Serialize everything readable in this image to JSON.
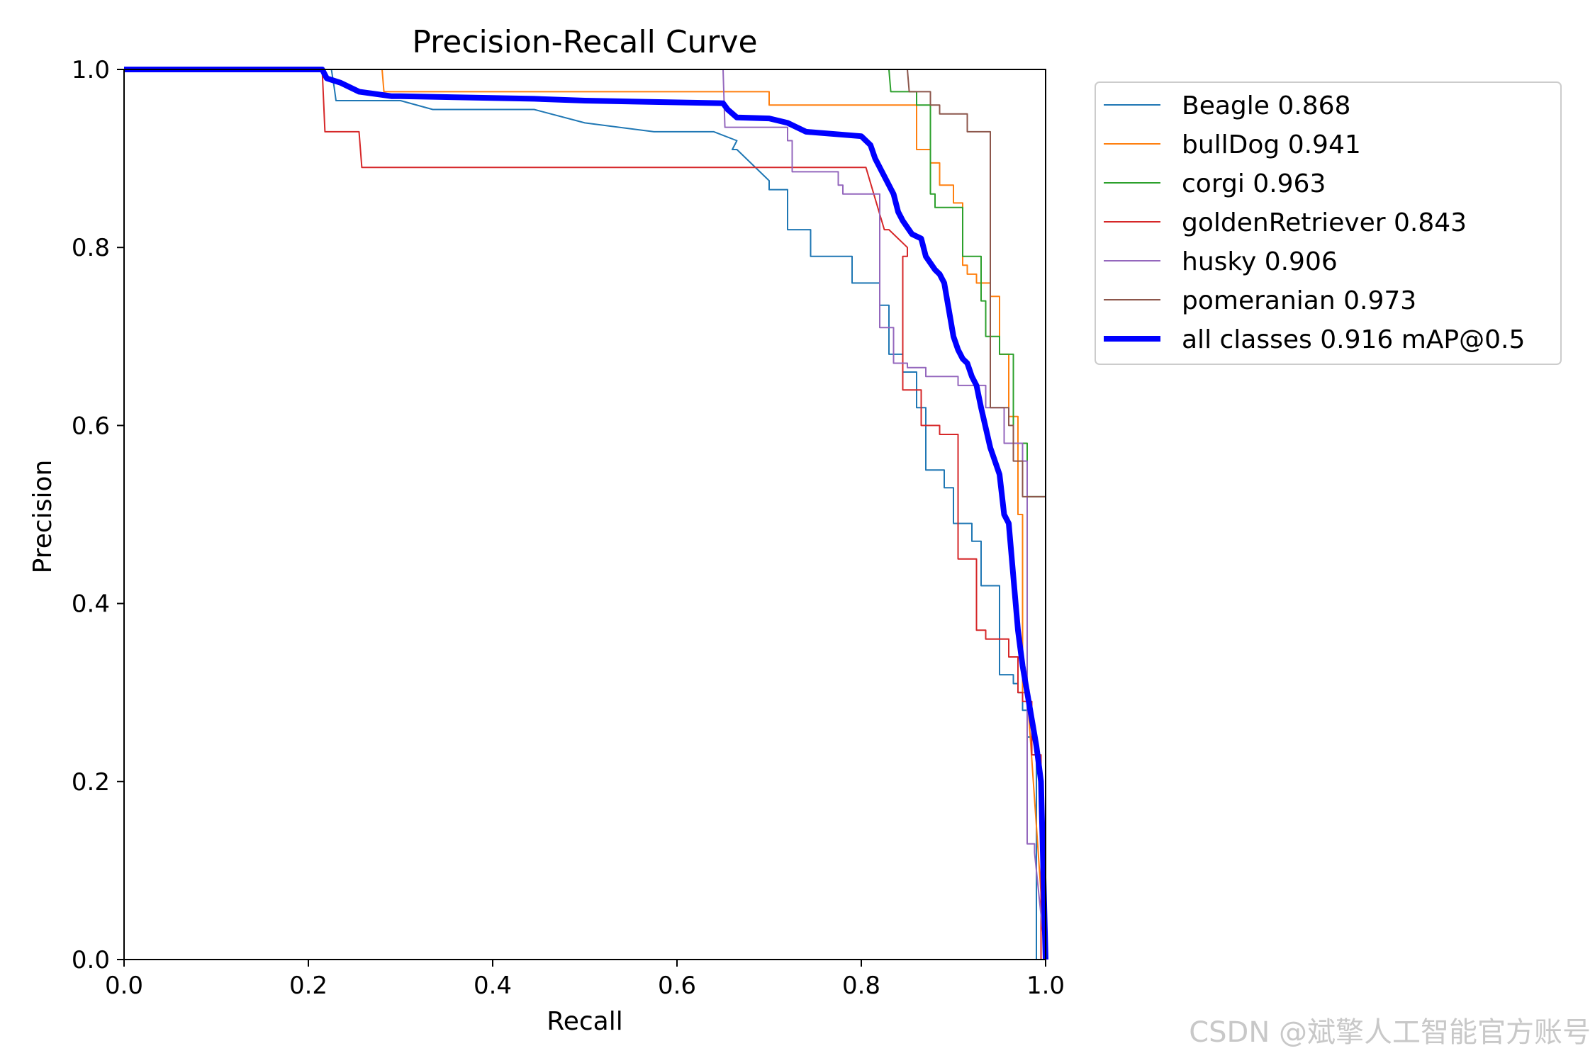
{
  "watermark": "CSDN @斌擎人工智能官方账号",
  "chart_data": {
    "type": "line",
    "title": "Precision-Recall Curve",
    "xlabel": "Recall",
    "ylabel": "Precision",
    "xlim": [
      0,
      1
    ],
    "ylim": [
      0,
      1
    ],
    "xticks": [
      "0.0",
      "0.2",
      "0.4",
      "0.6",
      "0.8",
      "1.0"
    ],
    "yticks": [
      "0.0",
      "0.2",
      "0.4",
      "0.6",
      "0.8",
      "1.0"
    ],
    "legend_position": "outside-right",
    "series": [
      {
        "name": "Beagle",
        "legend": "Beagle 0.868",
        "color": "#1f77b4",
        "bold": false,
        "x": [
          0,
          0.225,
          0.228,
          0.23,
          0.3,
          0.335,
          0.445,
          0.5,
          0.575,
          0.64,
          0.665,
          0.66,
          0.665,
          0.7,
          0.7,
          0.72,
          0.72,
          0.72,
          0.745,
          0.745,
          0.79,
          0.79,
          0.82,
          0.82,
          0.83,
          0.83,
          0.845,
          0.845,
          0.86,
          0.86,
          0.87,
          0.87,
          0.89,
          0.89,
          0.9,
          0.9,
          0.92,
          0.92,
          0.93,
          0.93,
          0.95,
          0.95,
          0.965,
          0.965,
          0.97,
          0.97,
          0.975,
          0.975,
          0.98,
          0.98,
          0.985,
          0.985,
          0.99,
          0.99,
          1.0,
          1.0
        ],
        "y": [
          1.0,
          1.0,
          0.98,
          0.965,
          0.965,
          0.955,
          0.955,
          0.94,
          0.93,
          0.93,
          0.92,
          0.91,
          0.91,
          0.875,
          0.865,
          0.865,
          0.845,
          0.82,
          0.82,
          0.79,
          0.79,
          0.76,
          0.76,
          0.735,
          0.735,
          0.68,
          0.68,
          0.66,
          0.66,
          0.62,
          0.62,
          0.55,
          0.55,
          0.53,
          0.53,
          0.49,
          0.49,
          0.47,
          0.47,
          0.42,
          0.42,
          0.32,
          0.32,
          0.31,
          0.31,
          0.3,
          0.3,
          0.28,
          0.28,
          0.25,
          0.25,
          0.23,
          0.23,
          0.0,
          0.0,
          0.0
        ]
      },
      {
        "name": "bullDog",
        "legend": "bullDog 0.941",
        "color": "#ff7f0e",
        "bold": false,
        "x": [
          0,
          0.28,
          0.282,
          0.7,
          0.7,
          0.85,
          0.86,
          0.86,
          0.875,
          0.875,
          0.885,
          0.885,
          0.9,
          0.9,
          0.91,
          0.91,
          0.915,
          0.915,
          0.925,
          0.925,
          0.94,
          0.94,
          0.95,
          0.95,
          0.96,
          0.96,
          0.97,
          0.97,
          0.975,
          0.975,
          0.98,
          1.0
        ],
        "y": [
          1.0,
          1.0,
          0.975,
          0.975,
          0.96,
          0.96,
          0.96,
          0.91,
          0.91,
          0.895,
          0.895,
          0.87,
          0.87,
          0.85,
          0.85,
          0.78,
          0.78,
          0.77,
          0.77,
          0.76,
          0.76,
          0.745,
          0.745,
          0.68,
          0.68,
          0.61,
          0.61,
          0.5,
          0.5,
          0.3,
          0.3,
          0.0
        ]
      },
      {
        "name": "corgi",
        "legend": "corgi 0.963",
        "color": "#2ca02c",
        "bold": false,
        "x": [
          0,
          0.83,
          0.832,
          0.86,
          0.86,
          0.875,
          0.875,
          0.88,
          0.88,
          0.91,
          0.91,
          0.93,
          0.93,
          0.935,
          0.935,
          0.95,
          0.95,
          0.965,
          0.965,
          0.98,
          0.98,
          1.0,
          1.0
        ],
        "y": [
          1.0,
          1.0,
          0.975,
          0.975,
          0.96,
          0.96,
          0.86,
          0.86,
          0.845,
          0.845,
          0.79,
          0.79,
          0.74,
          0.74,
          0.7,
          0.7,
          0.68,
          0.68,
          0.58,
          0.58,
          0.52,
          0.52,
          0.0
        ]
      },
      {
        "name": "goldenRetriever",
        "legend": "goldenRetriever 0.843",
        "color": "#d62728",
        "bold": false,
        "x": [
          0,
          0.215,
          0.218,
          0.255,
          0.258,
          0.8,
          0.805,
          0.825,
          0.83,
          0.85,
          0.85,
          0.845,
          0.845,
          0.865,
          0.865,
          0.885,
          0.885,
          0.905,
          0.905,
          0.925,
          0.925,
          0.935,
          0.935,
          0.96,
          0.96,
          0.97,
          0.97,
          0.975,
          0.975,
          0.985,
          0.985,
          0.995,
          0.995,
          1.0,
          1.0
        ],
        "y": [
          1.0,
          1.0,
          0.93,
          0.93,
          0.89,
          0.89,
          0.89,
          0.82,
          0.82,
          0.8,
          0.79,
          0.79,
          0.64,
          0.64,
          0.6,
          0.6,
          0.59,
          0.59,
          0.45,
          0.45,
          0.37,
          0.37,
          0.36,
          0.36,
          0.34,
          0.34,
          0.3,
          0.3,
          0.29,
          0.29,
          0.23,
          0.23,
          0.0,
          0.0,
          0.0
        ]
      },
      {
        "name": "husky",
        "legend": "husky 0.906",
        "color": "#9467bd",
        "bold": false,
        "x": [
          0,
          0.65,
          0.652,
          0.72,
          0.72,
          0.725,
          0.725,
          0.775,
          0.775,
          0.78,
          0.78,
          0.82,
          0.82,
          0.835,
          0.835,
          0.85,
          0.85,
          0.87,
          0.87,
          0.905,
          0.905,
          0.935,
          0.935,
          0.955,
          0.955,
          0.975,
          0.975,
          0.98,
          0.98,
          0.988,
          0.988,
          1.0
        ],
        "y": [
          1.0,
          1.0,
          0.935,
          0.935,
          0.92,
          0.92,
          0.885,
          0.885,
          0.87,
          0.87,
          0.86,
          0.86,
          0.71,
          0.71,
          0.67,
          0.67,
          0.665,
          0.665,
          0.655,
          0.655,
          0.645,
          0.645,
          0.62,
          0.62,
          0.58,
          0.58,
          0.56,
          0.56,
          0.13,
          0.13,
          0.12,
          0.0
        ]
      },
      {
        "name": "pomeranian",
        "legend": "pomeranian 0.973",
        "color": "#8c564b",
        "bold": false,
        "x": [
          0,
          0.85,
          0.852,
          0.875,
          0.875,
          0.885,
          0.885,
          0.915,
          0.915,
          0.94,
          0.94,
          0.96,
          0.96,
          0.965,
          0.965,
          0.975,
          0.975,
          0.98,
          0.98,
          1.0,
          1.0
        ],
        "y": [
          1.0,
          1.0,
          0.975,
          0.975,
          0.96,
          0.96,
          0.95,
          0.95,
          0.93,
          0.93,
          0.62,
          0.62,
          0.6,
          0.6,
          0.56,
          0.56,
          0.52,
          0.52,
          0.52,
          0.52,
          0.0
        ]
      },
      {
        "name": "all classes",
        "legend": "all classes 0.916 mAP@0.5",
        "color": "#0000ff",
        "bold": true,
        "x": [
          0,
          0.215,
          0.22,
          0.235,
          0.255,
          0.29,
          0.3,
          0.445,
          0.5,
          0.65,
          0.655,
          0.665,
          0.7,
          0.72,
          0.73,
          0.74,
          0.8,
          0.81,
          0.815,
          0.83,
          0.835,
          0.84,
          0.845,
          0.855,
          0.865,
          0.87,
          0.88,
          0.885,
          0.89,
          0.895,
          0.9,
          0.905,
          0.91,
          0.915,
          0.92,
          0.925,
          0.93,
          0.94,
          0.945,
          0.95,
          0.955,
          0.96,
          0.965,
          0.97,
          0.975,
          0.98,
          0.985,
          0.99,
          0.995,
          1.0,
          1.0
        ],
        "y": [
          1.0,
          1.0,
          0.99,
          0.985,
          0.975,
          0.97,
          0.97,
          0.967,
          0.965,
          0.962,
          0.955,
          0.946,
          0.945,
          0.94,
          0.935,
          0.93,
          0.925,
          0.915,
          0.9,
          0.87,
          0.86,
          0.84,
          0.83,
          0.815,
          0.81,
          0.79,
          0.775,
          0.77,
          0.76,
          0.73,
          0.7,
          0.685,
          0.675,
          0.67,
          0.655,
          0.645,
          0.62,
          0.575,
          0.56,
          0.545,
          0.5,
          0.49,
          0.43,
          0.37,
          0.33,
          0.3,
          0.27,
          0.24,
          0.2,
          0.0,
          0.0
        ]
      }
    ]
  }
}
